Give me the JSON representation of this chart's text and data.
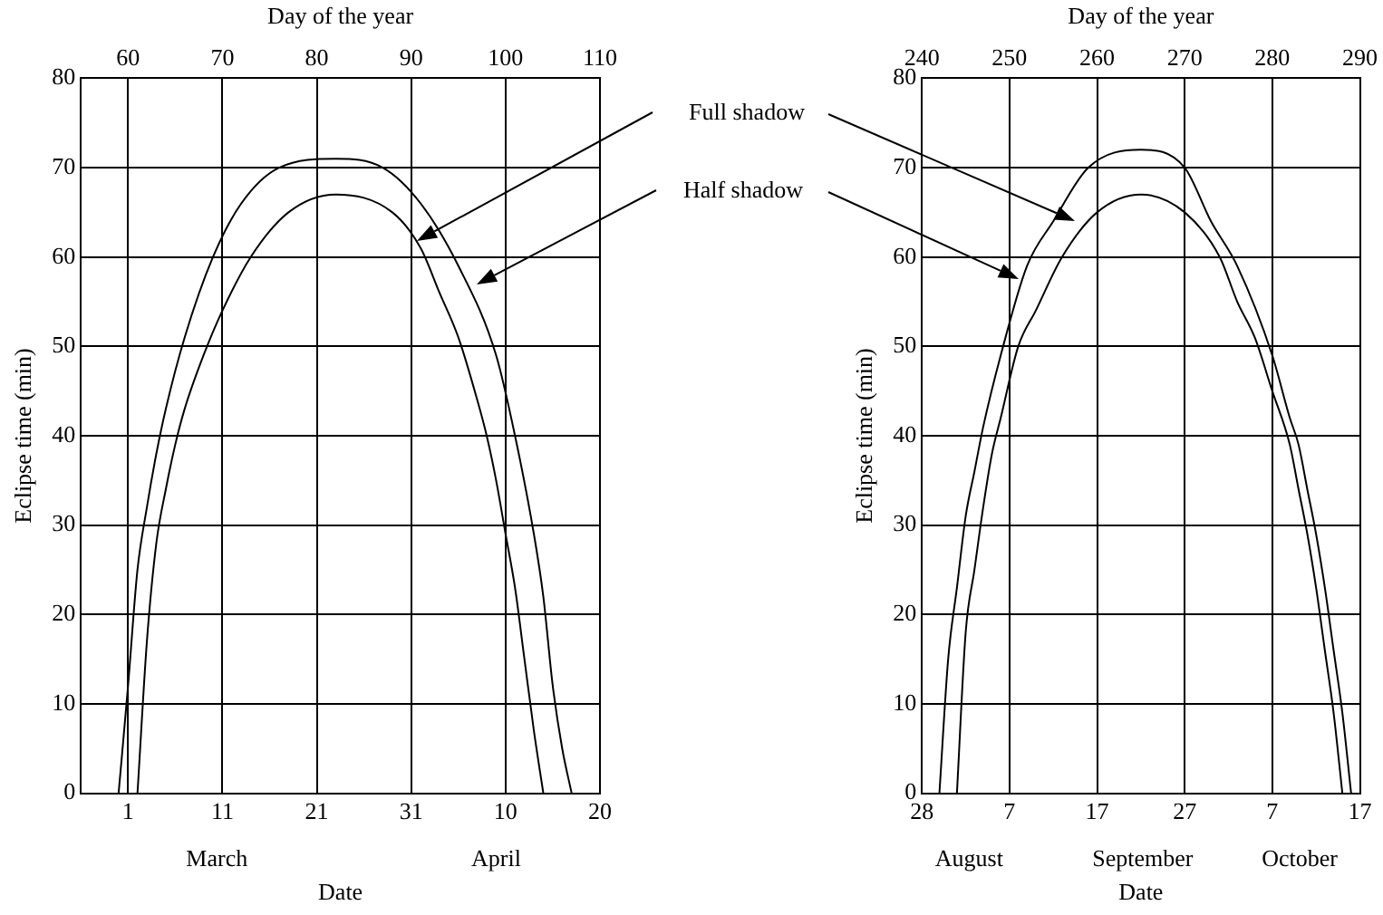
{
  "chart_data": [
    {
      "type": "line",
      "xlabel": "Date",
      "x2label": "Day of the year",
      "ylabel": "Eclipse time (min)",
      "xlim": [
        "--02-24",
        "--04-20"
      ],
      "xticks": [
        {
          "value": "--03-01",
          "label": "1"
        },
        {
          "value": "--03-11",
          "label": "11"
        },
        {
          "value": "--03-21",
          "label": "21"
        },
        {
          "value": "--03-31",
          "label": "31"
        },
        {
          "value": "--04-10",
          "label": "10"
        },
        {
          "value": "--04-20",
          "label": "20"
        }
      ],
      "x2lim": [
        55,
        110
      ],
      "x2ticks": [
        60,
        70,
        80,
        90,
        100,
        110
      ],
      "ylim": [
        0,
        80
      ],
      "yticks": [
        0,
        10,
        20,
        30,
        40,
        50,
        60,
        70,
        80
      ],
      "grid": true,
      "marker": "none",
      "line_style": "solid",
      "series": [
        {
          "color": "#000000",
          "x": [
            "--02-28",
            "--03-01",
            "--03-02",
            "--03-03",
            "--03-04",
            "--03-05",
            "--03-07",
            "--03-10",
            "--03-13",
            "--03-17",
            "--03-23",
            "--03-28",
            "--04-01",
            "--04-05",
            "--04-09",
            "--04-11",
            "--04-13",
            "--04-14",
            "--04-15",
            "--04-16",
            "--04-17"
          ],
          "values": [
            0,
            12,
            25,
            32,
            38,
            43,
            51,
            60,
            66,
            70,
            71,
            70,
            66,
            59,
            49,
            40,
            29,
            22,
            12,
            5,
            0
          ]
        },
        {
          "color": "#000000",
          "x": [
            "--03-02",
            "--03-03",
            "--03-04",
            "--03-05",
            "--03-06",
            "--03-07",
            "--03-09",
            "--03-11",
            "--03-14",
            "--03-18",
            "--03-23",
            "--03-29",
            "--04-01",
            "--04-03",
            "--04-05",
            "--04-07",
            "--04-08",
            "--04-09",
            "--04-10",
            "--04-11",
            "--04-12",
            "--04-13",
            "--04-14"
          ],
          "values": [
            0,
            17,
            28,
            34,
            39,
            43,
            49,
            54,
            60,
            65,
            67,
            65,
            61,
            56,
            51,
            44,
            40,
            35,
            29,
            23,
            15,
            7,
            0
          ]
        }
      ],
      "annotations": [
        "Full shadow",
        "Half shadow",
        "March",
        "April"
      ]
    },
    {
      "type": "line",
      "xlabel": "Date",
      "x2label": "Day of the year",
      "ylabel": "Eclipse time (min)",
      "xlim": [
        "--08-28",
        "--10-17"
      ],
      "xticks": [
        {
          "value": "--08-28",
          "label": "28"
        },
        {
          "value": "--09-07",
          "label": "7"
        },
        {
          "value": "--09-17",
          "label": "17"
        },
        {
          "value": "--09-27",
          "label": "27"
        },
        {
          "value": "--10-07",
          "label": "7"
        },
        {
          "value": "--10-17",
          "label": "17"
        }
      ],
      "x2lim": [
        240,
        290
      ],
      "x2ticks": [
        240,
        250,
        260,
        270,
        280,
        290
      ],
      "ylim": [
        0,
        80
      ],
      "yticks": [
        0,
        10,
        20,
        30,
        40,
        50,
        60,
        70,
        80
      ],
      "grid": true,
      "marker": "none",
      "line_style": "solid",
      "series": [
        {
          "color": "#000000",
          "x": [
            "--08-30",
            "--08-31",
            "--09-01",
            "--09-02",
            "--09-03",
            "--09-04",
            "--09-06",
            "--09-09",
            "--09-12",
            "--09-16",
            "--09-22",
            "--09-27",
            "--09-30",
            "--10-03",
            "--10-07",
            "--10-09",
            "--10-10",
            "--10-11",
            "--10-12",
            "--10-13",
            "--10-14",
            "--10-15",
            "--10-16"
          ],
          "values": [
            0,
            15,
            23,
            31,
            36,
            41,
            49,
            59,
            64,
            70,
            72,
            70,
            64,
            59,
            49,
            42,
            39,
            34,
            29,
            23,
            16,
            9,
            0
          ]
        },
        {
          "color": "#000000",
          "x": [
            "--09-01",
            "--09-02",
            "--09-03",
            "--09-04",
            "--09-05",
            "--09-06",
            "--09-08",
            "--09-10",
            "--09-13",
            "--09-17",
            "--09-22",
            "--09-27",
            "--10-01",
            "--10-03",
            "--10-05",
            "--10-07",
            "--10-09",
            "--10-10",
            "--10-11",
            "--10-12",
            "--10-13",
            "--10-14",
            "--10-15"
          ],
          "values": [
            0,
            18,
            25,
            32,
            38,
            42,
            50,
            54,
            60,
            65,
            67,
            65,
            60,
            55,
            51,
            45,
            39,
            34,
            29,
            23,
            16,
            9,
            0
          ]
        }
      ],
      "annotations": [
        "August",
        "September",
        "October"
      ]
    }
  ]
}
